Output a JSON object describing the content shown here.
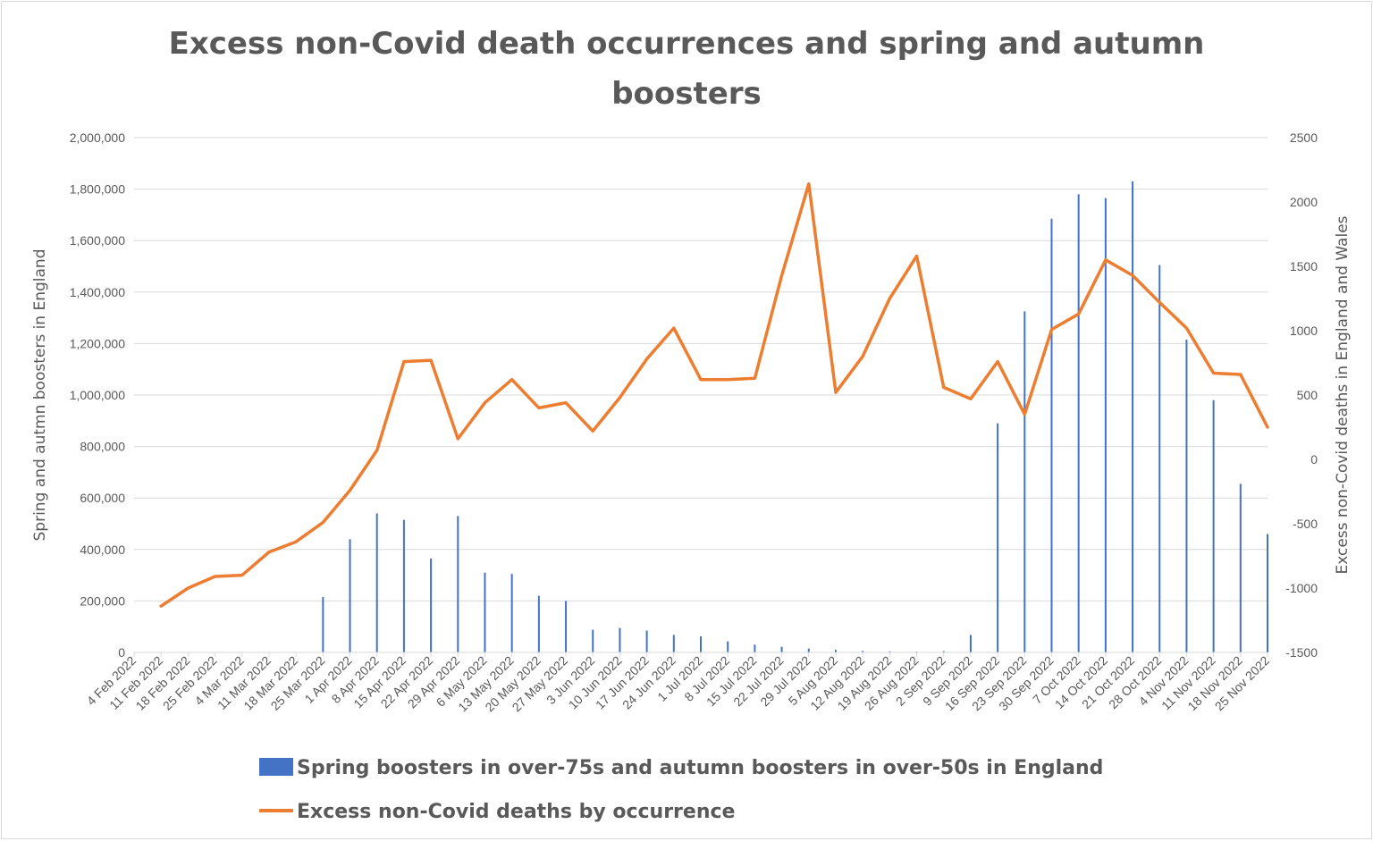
{
  "colors": {
    "bars": "#4472c4",
    "line": "#ed7d31",
    "grid": "#d9d9d9",
    "text": "#595959"
  },
  "chart_data": {
    "type": "bar",
    "title": [
      "Excess non-Covid death occurrences and spring and autumn",
      "boosters"
    ],
    "ylabel_left": "Spring and autmn boosters in England",
    "ylabel_right": "Excess non-Covid deaths in England and Wales",
    "y_left_lim": [
      0,
      2000000
    ],
    "y_left_ticks": [
      "0",
      "200,000",
      "400,000",
      "600,000",
      "800,000",
      "1,000,000",
      "1,200,000",
      "1,400,000",
      "1,600,000",
      "1,800,000",
      "2,000,000"
    ],
    "y_right_lim": [
      -1500,
      2500
    ],
    "y_right_ticks": [
      "-1500",
      "-1000",
      "-500",
      "0",
      "500",
      "1000",
      "1500",
      "2000",
      "2500"
    ],
    "grid": true,
    "legend_position": "bottom",
    "categories": [
      "4 Feb 2022",
      "11 Feb 2022",
      "18 Feb 2022",
      "25 Feb 2022",
      "4 Mar 2022",
      "11 Mar 2022",
      "18 Mar 2022",
      "25 Mar 2022",
      "1 Apr 2022",
      "8 Apr 2022",
      "15 Apr 2022",
      "22 Apr 2022",
      "29 Apr 2022",
      "6 May 2022",
      "13 May 2022",
      "20 May 2022",
      "27 May 2022",
      "3 Jun 2022",
      "10 Jun 2022",
      "17 Jun 2022",
      "24 Jun 2022",
      "1 Jul 2022",
      "8 Jul 2022",
      "15 Jul 2022",
      "22 Jul 2022",
      "29 Jul 2022",
      "5 Aug 2022",
      "12 Aug 2022",
      "19 Aug 2022",
      "26 Aug 2022",
      "2 Sep 2022",
      "9 Sep 2022",
      "16 Sep 2022",
      "23 Sep 2022",
      "30 Sep 2022",
      "7 Oct 2022",
      "14 Oct 2022",
      "21 Oct 2022",
      "28 Oct 2022",
      "4 Nov 2022",
      "11 Nov 2022",
      "18 Nov 2022",
      "25 Nov 2022"
    ],
    "series": [
      {
        "name": "Spring boosters in over-75s and autumn boosters in over-50s in England",
        "type": "bar",
        "axis": "left",
        "values": [
          0,
          0,
          0,
          0,
          0,
          0,
          0,
          215000,
          440000,
          540000,
          515000,
          365000,
          530000,
          310000,
          305000,
          220000,
          200000,
          88000,
          95000,
          85000,
          68000,
          62000,
          43000,
          30000,
          22000,
          15000,
          10000,
          6000,
          4000,
          3000,
          5000,
          68000,
          890000,
          1325000,
          1685000,
          1780000,
          1765000,
          1830000,
          1505000,
          1215000,
          980000,
          655000,
          460000
        ]
      },
      {
        "name": "Excess non-Covid deaths by occurrence",
        "type": "line",
        "axis": "right",
        "values": [
          null,
          -1140,
          -1000,
          -910,
          -900,
          -720,
          -640,
          -490,
          -240,
          70,
          760,
          770,
          160,
          440,
          620,
          400,
          440,
          220,
          480,
          780,
          1020,
          620,
          620,
          630,
          1430,
          2140,
          520,
          800,
          1250,
          1580,
          560,
          470,
          760,
          350,
          1010,
          1130,
          1550,
          1430,
          1220,
          1020,
          670,
          660,
          250
        ]
      }
    ]
  }
}
